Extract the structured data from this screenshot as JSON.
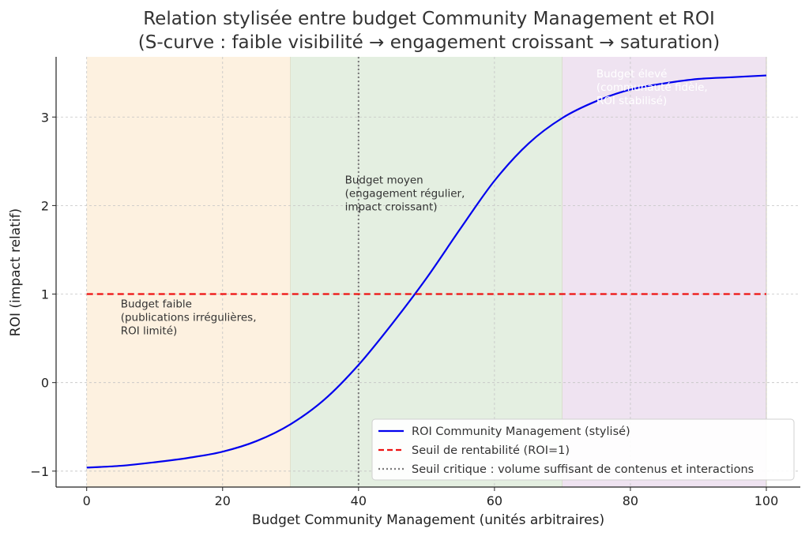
{
  "chart_data": {
    "type": "line",
    "title": "Relation stylisée entre budget Community Management et ROI",
    "subtitle": "(S-curve : faible visibilité → engagement croissant → saturation)",
    "xlabel": "Budget Community Management (unités arbitraires)",
    "ylabel": "ROI (impact relatif)",
    "xlim": [
      -4.5,
      105
    ],
    "ylim": [
      -1.18,
      3.68
    ],
    "x_ticks": [
      0,
      20,
      40,
      60,
      80,
      100
    ],
    "x_tick_labels": [
      "0",
      "20",
      "40",
      "60",
      "80",
      "100"
    ],
    "y_ticks": [
      -1,
      0,
      1,
      2,
      3
    ],
    "y_tick_labels": [
      "−1",
      "0",
      "1",
      "2",
      "3"
    ],
    "grid": true,
    "legend_position": "bottom-right",
    "series": [
      {
        "name": "ROI Community Management (stylisé)",
        "style": "solid",
        "color": "#0000ee",
        "x": [
          0,
          5,
          10,
          15,
          20,
          25,
          30,
          35,
          40,
          45,
          50,
          55,
          60,
          65,
          70,
          75,
          80,
          85,
          90,
          95,
          100
        ],
        "y": [
          -0.96,
          -0.94,
          -0.9,
          -0.85,
          -0.78,
          -0.66,
          -0.47,
          -0.19,
          0.2,
          0.67,
          1.18,
          1.74,
          2.28,
          2.7,
          2.99,
          3.18,
          3.31,
          3.38,
          3.43,
          3.45,
          3.47
        ]
      },
      {
        "name": "Seuil de rentabilité (ROI=1)",
        "style": "dashed",
        "color": "#ee1111",
        "x": [
          0,
          100
        ],
        "y": [
          1,
          1
        ]
      }
    ],
    "vlines": [
      {
        "name": "Seuil critique : volume suffisant de contenus et interactions",
        "x": 40,
        "style": "dotted",
        "color": "#7a7a7a"
      }
    ],
    "regions": [
      {
        "x0": 0,
        "x1": 30,
        "color": "#fdf1e0"
      },
      {
        "x0": 30,
        "x1": 70,
        "color": "#e4efe1"
      },
      {
        "x0": 70,
        "x1": 100,
        "color": "#efe3f1"
      }
    ],
    "annotations": [
      {
        "x": 5,
        "y": 0.85,
        "color": "#333333",
        "lines": [
          "Budget faible",
          "(publications irrégulières,",
          "ROI limité)"
        ]
      },
      {
        "x": 38,
        "y": 2.25,
        "color": "#333333",
        "lines": [
          "Budget moyen",
          "(engagement régulier,",
          "impact croissant)"
        ]
      },
      {
        "x": 75,
        "y": 3.45,
        "color": "#ffffff",
        "lines": [
          "Budget élevé",
          "(communauté fidèle,",
          "ROI stabilisé)"
        ]
      }
    ]
  }
}
